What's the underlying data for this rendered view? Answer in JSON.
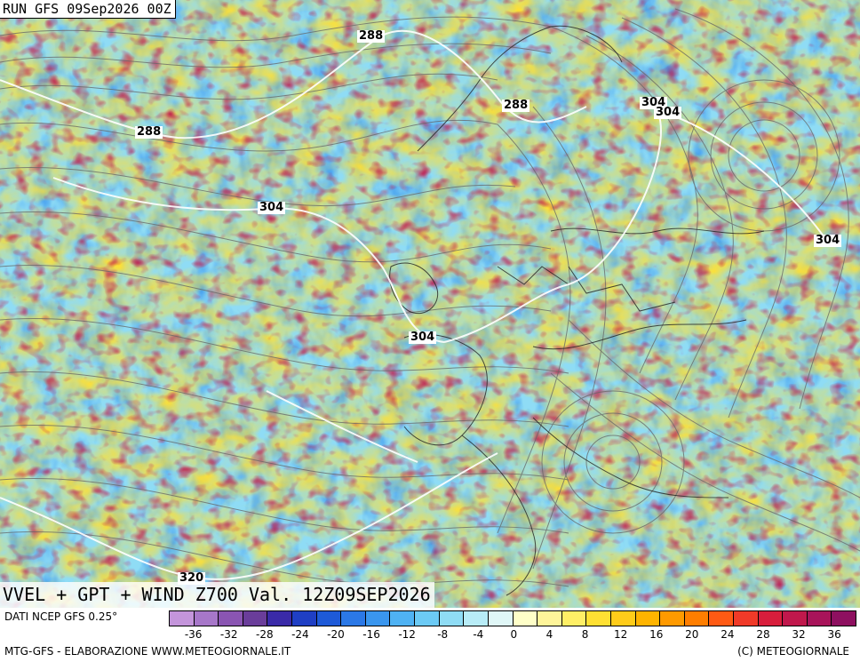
{
  "header": {
    "run_label": "RUN GFS 09Sep2026 00Z"
  },
  "title": "VVEL + GPT + WIND Z700 Val. 12Z09SEP2026",
  "isolines": [
    "288",
    "288",
    "288",
    "304",
    "304",
    "304",
    "304",
    "304",
    "320"
  ],
  "legend": {
    "source": "DATI NCEP GFS 0.25°",
    "colors": [
      "#c495db",
      "#a777c9",
      "#8a55b2",
      "#6a3d9a",
      "#3a2aa8",
      "#1f3fc4",
      "#1e5ad8",
      "#2b78e6",
      "#3a96ee",
      "#4fb2f3",
      "#6ccaf5",
      "#8fdcf5",
      "#b8ecf7",
      "#e0f7f7",
      "#ffffc8",
      "#fff59a",
      "#ffef66",
      "#ffe033",
      "#ffcc1a",
      "#ffb400",
      "#ff9a00",
      "#ff7e00",
      "#ff5a14",
      "#f03a28",
      "#d81e3c",
      "#c0184c",
      "#a8145a",
      "#8e1060"
    ],
    "ticks": [
      "-36",
      "-32",
      "-28",
      "-24",
      "-20",
      "-16",
      "-12",
      "-8",
      "-4",
      "0",
      "4",
      "8",
      "12",
      "16",
      "20",
      "24",
      "28",
      "32",
      "36"
    ]
  },
  "footer": {
    "left": "MTG-GFS - ELABORAZIONE WWW.METEOGIORNALE.IT",
    "right": "(C) METEOGIORNALE"
  }
}
